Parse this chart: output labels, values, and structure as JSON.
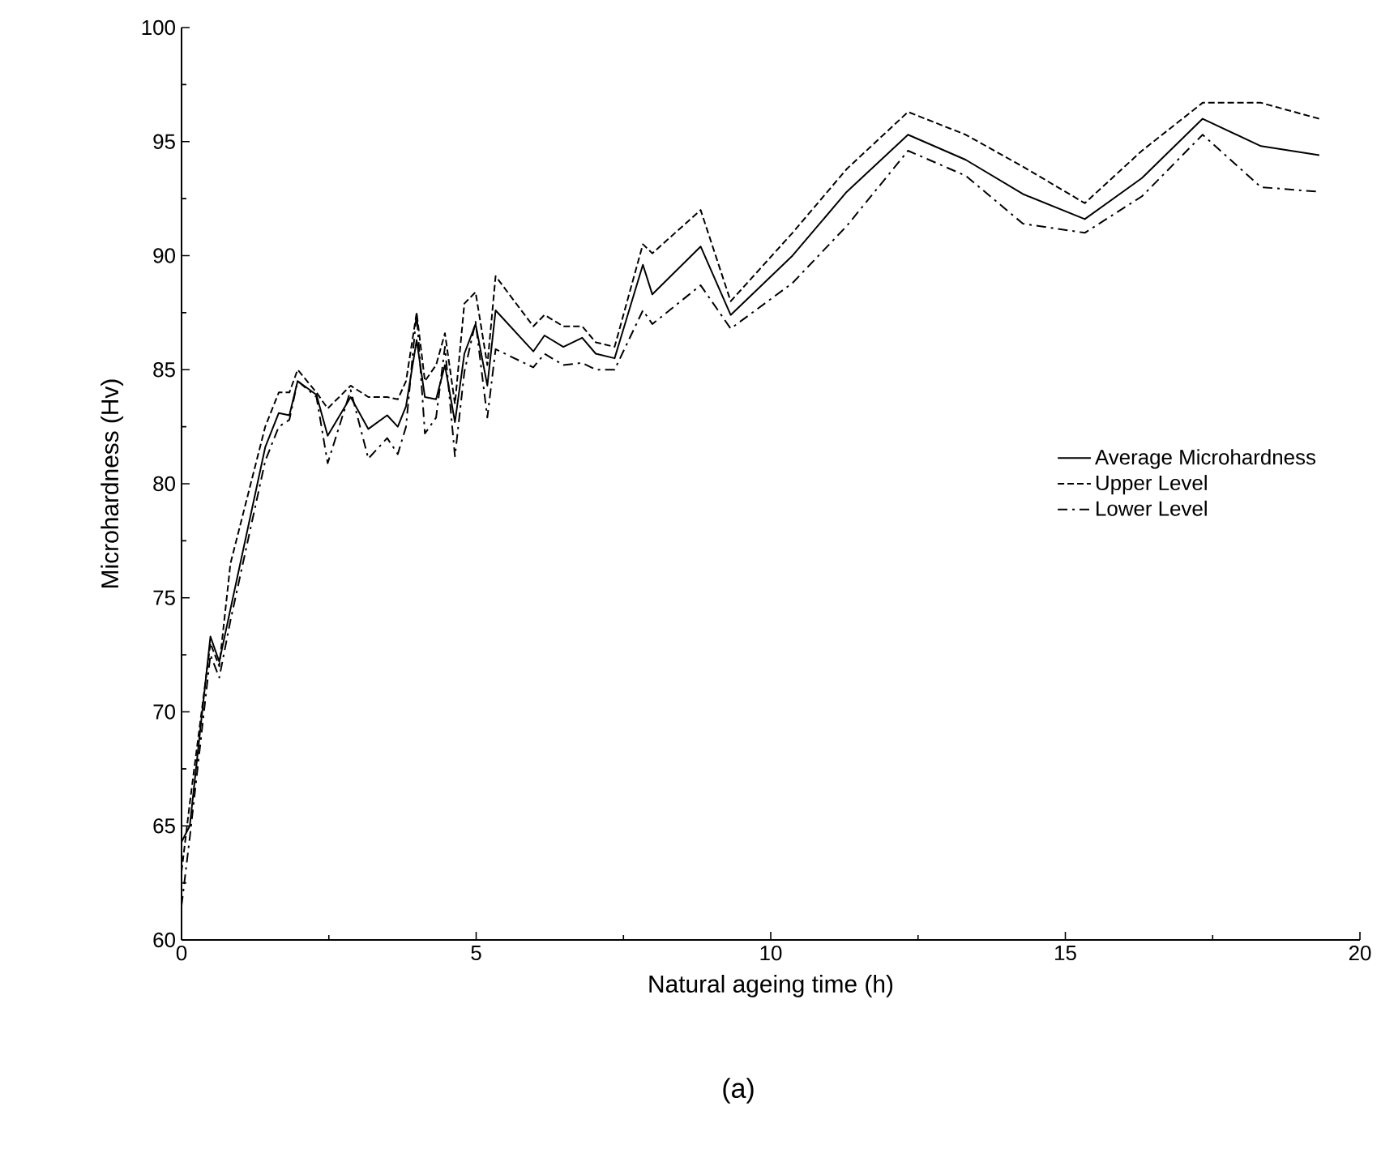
{
  "chart_data": {
    "type": "line",
    "xlabel": "Natural ageing time (h)",
    "ylabel": "Microhardness (Hv)",
    "annotations": [
      "(a)"
    ],
    "xlim": [
      0,
      20
    ],
    "ylim": [
      60,
      100
    ],
    "xticks": [
      0,
      5,
      10,
      15,
      20
    ],
    "yticks": [
      60,
      65,
      70,
      75,
      80,
      85,
      90,
      95,
      100
    ],
    "grid": false,
    "legend": "right",
    "marker": "none",
    "x": [
      0,
      0.14,
      0.49,
      0.64,
      0.83,
      1.42,
      1.65,
      1.83,
      1.97,
      2.29,
      2.48,
      2.87,
      3.17,
      3.49,
      3.67,
      3.81,
      3.99,
      4.13,
      4.32,
      4.47,
      4.64,
      4.8,
      4.99,
      5.19,
      5.33,
      5.97,
      6.16,
      6.48,
      6.8,
      7.03,
      7.35,
      7.83,
      7.99,
      8.81,
      9.32,
      10.37,
      11.29,
      12.33,
      13.31,
      14.28,
      15.33,
      16.3,
      17.33,
      18.32,
      19.31
    ],
    "series": [
      {
        "name": "Average Microhardness",
        "color": "#000000",
        "line_style": "solid",
        "values": [
          64.3,
          65,
          73.3,
          72.2,
          74.5,
          81.6,
          83.1,
          83.0,
          84.5,
          83.9,
          82.1,
          83.8,
          82.4,
          83.0,
          82.5,
          83.4,
          86.3,
          83.8,
          83.7,
          85.2,
          82.7,
          85.7,
          87.0,
          84.3,
          87.6,
          85.8,
          86.5,
          86.0,
          86.4,
          85.7,
          85.5,
          89.6,
          88.3,
          90.4,
          87.4,
          90.0,
          92.8,
          95.3,
          94.2,
          92.7,
          91.6,
          93.4,
          96.0,
          94.8,
          94.4
        ]
      },
      {
        "name": "Upper Level",
        "color": "#000000",
        "line_style": "dashed",
        "values": [
          63.0,
          66.0,
          73.0,
          72.0,
          76.5,
          82.5,
          84.0,
          84.0,
          85.0,
          84.0,
          83.3,
          84.3,
          83.8,
          83.8,
          83.7,
          84.5,
          87.5,
          84.5,
          85.2,
          86.6,
          83.5,
          87.9,
          88.4,
          85.2,
          89.1,
          86.9,
          87.4,
          86.9,
          86.9,
          86.2,
          86.0,
          90.5,
          90.1,
          92.0,
          88.0,
          91.0,
          93.8,
          96.3,
          95.3,
          93.9,
          92.3,
          94.6,
          96.7,
          96.7,
          96.0
        ]
      },
      {
        "name": "Lower Level",
        "color": "#000000",
        "line_style": "dashdot",
        "values": [
          61.5,
          64.5,
          72.5,
          71.5,
          74.0,
          81.0,
          82.5,
          82.8,
          84.5,
          83.8,
          80.9,
          84.1,
          81.1,
          82.0,
          81.3,
          82.5,
          87.5,
          82.2,
          82.9,
          86.0,
          81.2,
          84.9,
          87.1,
          82.9,
          85.9,
          85.1,
          85.7,
          85.2,
          85.3,
          85.0,
          85.0,
          87.6,
          87.0,
          88.7,
          86.8,
          88.8,
          91.3,
          94.6,
          93.5,
          91.4,
          91.0,
          92.6,
          95.3,
          93.0,
          92.8
        ]
      }
    ]
  }
}
